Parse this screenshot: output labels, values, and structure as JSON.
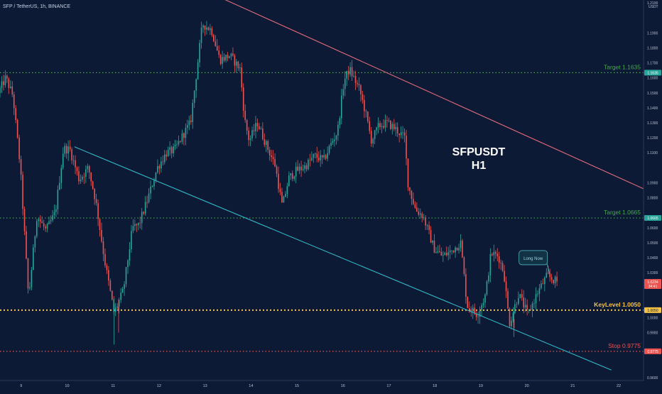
{
  "header": {
    "symbol_line": "SFP / TetherUS, 1h, BINANCE"
  },
  "price_axis": {
    "currency": "USDT",
    "ticks": [
      {
        "value": 1.21,
        "label": "1.2100"
      },
      {
        "value": 1.19,
        "label": "1.1900"
      },
      {
        "value": 1.18,
        "label": "1.1800"
      },
      {
        "value": 1.17,
        "label": "1.1700"
      },
      {
        "value": 1.16,
        "label": "1.1600"
      },
      {
        "value": 1.15,
        "label": "1.1500"
      },
      {
        "value": 1.14,
        "label": "1.1400"
      },
      {
        "value": 1.13,
        "label": "1.1300"
      },
      {
        "value": 1.12,
        "label": "1.1200"
      },
      {
        "value": 1.11,
        "label": "1.1100"
      },
      {
        "value": 1.09,
        "label": "1.0900"
      },
      {
        "value": 1.08,
        "label": "1.0800"
      },
      {
        "value": 1.06,
        "label": "1.0600"
      },
      {
        "value": 1.05,
        "label": "1.0500"
      },
      {
        "value": 1.04,
        "label": "1.0400"
      },
      {
        "value": 1.03,
        "label": "1.0300"
      },
      {
        "value": 1.0,
        "label": "1.0000"
      },
      {
        "value": 0.99,
        "label": "0.9900"
      },
      {
        "value": 0.96,
        "label": "0.9600"
      }
    ],
    "price_tags": [
      {
        "value": 1.1635,
        "label": "1.1635",
        "color": "#26a69a",
        "text_color": "#ffffff"
      },
      {
        "value": 1.0665,
        "label": "1.0665",
        "color": "#26a69a",
        "text_color": "#ffffff"
      },
      {
        "value": 1.0234,
        "label": "1.0234",
        "sub": "34:41",
        "color": "#ef5350",
        "text_color": "#ffffff"
      },
      {
        "value": 1.005,
        "label": "1.0050",
        "color": "#f5c242",
        "text_color": "#0d1a36"
      },
      {
        "value": 0.9775,
        "label": "0.9775",
        "color": "#ef5350",
        "text_color": "#ffffff"
      }
    ]
  },
  "time_axis": {
    "labels": [
      {
        "t": 2.3,
        "label": "9"
      },
      {
        "t": 7.3,
        "label": "10"
      },
      {
        "t": 12.3,
        "label": "11"
      },
      {
        "t": 17.3,
        "label": "12"
      },
      {
        "t": 22.3,
        "label": "13"
      },
      {
        "t": 27.3,
        "label": "14"
      },
      {
        "t": 32.3,
        "label": "15"
      },
      {
        "t": 37.3,
        "label": "16"
      },
      {
        "t": 42.3,
        "label": "17"
      },
      {
        "t": 47.3,
        "label": "18"
      },
      {
        "t": 52.3,
        "label": "19"
      },
      {
        "t": 57.3,
        "label": "20"
      },
      {
        "t": 62.3,
        "label": "21"
      },
      {
        "t": 67.3,
        "label": "22"
      }
    ]
  },
  "chart_data": {
    "type": "candlestick",
    "title": "SFPUSDT",
    "subtitle": "H1",
    "y_range": [
      0.958,
      1.212
    ],
    "x_range": [
      0,
      70
    ],
    "colors": {
      "up": "#26a69a",
      "down": "#ef5350",
      "background": "#0d1a36"
    },
    "anchors": [
      [
        0,
        1.15
      ],
      [
        0.8,
        1.16
      ],
      [
        1.6,
        1.148
      ],
      [
        2.4,
        1.1
      ],
      [
        3.3,
        1.013
      ],
      [
        4.2,
        1.068
      ],
      [
        5.2,
        1.058
      ],
      [
        6.2,
        1.07
      ],
      [
        7.1,
        1.113
      ],
      [
        7.8,
        1.112
      ],
      [
        8.8,
        1.092
      ],
      [
        9.8,
        1.1
      ],
      [
        10.6,
        1.078
      ],
      [
        11.6,
        1.037
      ],
      [
        12.6,
        1.003
      ],
      [
        13.6,
        1.018
      ],
      [
        14.6,
        1.06
      ],
      [
        15.3,
        1.062
      ],
      [
        16.3,
        1.08
      ],
      [
        17.3,
        1.1
      ],
      [
        18.3,
        1.11
      ],
      [
        19.2,
        1.112
      ],
      [
        20.1,
        1.122
      ],
      [
        20.9,
        1.13
      ],
      [
        21.7,
        1.17
      ],
      [
        22.2,
        1.196
      ],
      [
        23.2,
        1.192
      ],
      [
        24.1,
        1.172
      ],
      [
        25.2,
        1.175
      ],
      [
        26.3,
        1.166
      ],
      [
        26.8,
        1.132
      ],
      [
        27.3,
        1.118
      ],
      [
        28.2,
        1.13
      ],
      [
        29.1,
        1.116
      ],
      [
        30.1,
        1.102
      ],
      [
        30.9,
        1.074
      ],
      [
        31.6,
        1.093
      ],
      [
        32.4,
        1.098
      ],
      [
        33.4,
        1.101
      ],
      [
        34.4,
        1.108
      ],
      [
        35.4,
        1.105
      ],
      [
        36.2,
        1.116
      ],
      [
        36.9,
        1.124
      ],
      [
        37.6,
        1.158
      ],
      [
        38.2,
        1.166
      ],
      [
        39.3,
        1.152
      ],
      [
        39.9,
        1.138
      ],
      [
        40.6,
        1.118
      ],
      [
        41.4,
        1.128
      ],
      [
        42.3,
        1.13
      ],
      [
        43.2,
        1.126
      ],
      [
        44.2,
        1.12
      ],
      [
        44.6,
        1.088
      ],
      [
        45.4,
        1.072
      ],
      [
        46.2,
        1.068
      ],
      [
        47.4,
        1.046
      ],
      [
        48.3,
        1.041
      ],
      [
        49.2,
        1.044
      ],
      [
        50.3,
        1.05
      ],
      [
        51.0,
        1.008
      ],
      [
        52.1,
        1.002
      ],
      [
        53.0,
        1.015
      ],
      [
        53.6,
        1.043
      ],
      [
        54.4,
        1.041
      ],
      [
        55.0,
        1.03
      ],
      [
        55.6,
        0.996
      ],
      [
        56.6,
        1.016
      ],
      [
        57.6,
        1.002
      ],
      [
        58.6,
        1.016
      ],
      [
        59.7,
        1.028
      ],
      [
        60.7,
        1.024
      ]
    ],
    "manual_candles": [
      {
        "t": 12.4,
        "o": 1.004,
        "h": 1.013,
        "l": 0.982,
        "c": 1.009
      },
      {
        "t": 12.9,
        "o": 1.007,
        "h": 1.012,
        "l": 0.99,
        "c": 1.005
      },
      {
        "t": 55.9,
        "o": 0.999,
        "h": 1.004,
        "l": 0.987,
        "c": 0.993
      }
    ],
    "trendlines": [
      {
        "name": "descending-resistance",
        "from": [
          24.2,
          1.213
        ],
        "to": [
          70,
          1.086
        ],
        "color": "#e06b7a"
      },
      {
        "name": "descending-support",
        "from": [
          8.1,
          1.114
        ],
        "to": [
          66.5,
          0.965
        ],
        "color": "#2fb9c4"
      }
    ],
    "levels": [
      {
        "name": "target-1",
        "value": 1.1635,
        "label": "Target 1.1635",
        "color": "#43a84a",
        "style": "dotted"
      },
      {
        "name": "target-2",
        "value": 1.0665,
        "label": "Target 1.0665",
        "color": "#43a84a",
        "style": "dotted"
      },
      {
        "name": "key-level",
        "value": 1.005,
        "label": "KeyLevel 1.0050",
        "color": "#f5c242",
        "style": "dotted"
      },
      {
        "name": "stop",
        "value": 0.9775,
        "label": "Stop 0.9775",
        "color": "#ef5350",
        "style": "dotted"
      }
    ],
    "callout": {
      "text": "Long Now",
      "anchor": [
        58.0,
        1.04
      ],
      "point": [
        59.8,
        1.029
      ]
    }
  }
}
